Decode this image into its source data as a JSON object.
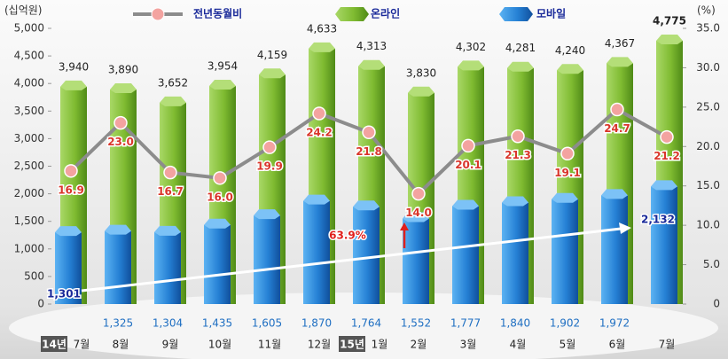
{
  "chart_data": {
    "type": "bar",
    "y_label": "(십억원)",
    "y2_label": "(%)",
    "categories": [
      "7월",
      "8월",
      "9월",
      "10월",
      "11월",
      "12월",
      "1월",
      "2월",
      "3월",
      "4월",
      "5월",
      "6월",
      "7월"
    ],
    "year_labels": [
      "14년",
      null,
      null,
      null,
      null,
      null,
      "15년",
      null,
      null,
      null,
      null,
      null,
      null
    ],
    "series": [
      {
        "name": "전년동월비",
        "type": "line",
        "axis": "y2",
        "color": "#8c8c8c",
        "marker_color": "#f3a3a0",
        "values": [
          16.9,
          23.0,
          16.7,
          16.0,
          19.9,
          24.2,
          21.8,
          14.0,
          20.1,
          21.3,
          19.1,
          24.7,
          21.2
        ],
        "value_labels": [
          "16.9",
          "23.0",
          "16.7",
          "16.0",
          "19.9",
          "24.2",
          "21.8",
          "14.0",
          "20.1",
          "21.3",
          "19.1",
          "24.7",
          "21.2"
        ]
      },
      {
        "name": "온라인",
        "type": "bar",
        "color": "#8cc63e",
        "values": [
          3940,
          3890,
          3652,
          3954,
          4159,
          4633,
          4313,
          3830,
          4302,
          4281,
          4240,
          4367,
          4775
        ],
        "value_labels": [
          "3,940",
          "3,890",
          "3,652",
          "3,954",
          "4,159",
          "4,633",
          "4,313",
          "3,830",
          "4,302",
          "4,281",
          "4,240",
          "4,367",
          "4,775"
        ]
      },
      {
        "name": "모바일",
        "type": "bar",
        "color": "#2a8ee0",
        "values": [
          1301,
          1325,
          1304,
          1435,
          1605,
          1870,
          1764,
          1552,
          1777,
          1840,
          1902,
          1972,
          2132
        ],
        "value_labels": [
          "1,301",
          "1,325",
          "1,304",
          "1,435",
          "1,605",
          "1,870",
          "1,764",
          "1,552",
          "1,777",
          "1,840",
          "1,902",
          "1,972",
          "2,132"
        ]
      }
    ],
    "ylim": [
      0,
      5000
    ],
    "yticks": [
      0,
      500,
      {
        "value": 1000,
        "label": "1,000"
      },
      {
        "value": 1500,
        "label": "1,500"
      },
      {
        "value": 2000,
        "label": "2,000"
      },
      {
        "value": 2500,
        "label": "2,500"
      },
      {
        "value": 3000,
        "label": "3,000"
      },
      {
        "value": 3500,
        "label": "3,500"
      },
      {
        "value": 4000,
        "label": "4,000"
      },
      {
        "value": 4500,
        "label": "4,500"
      },
      {
        "value": 5000,
        "label": "5,000"
      }
    ],
    "y2lim": [
      0,
      35
    ],
    "y2ticks": [
      0,
      {
        "value": 5,
        "label": "5.0"
      },
      {
        "value": 10,
        "label": "10.0"
      },
      {
        "value": 15,
        "label": "15.0"
      },
      {
        "value": 20,
        "label": "20.0"
      },
      {
        "value": 25,
        "label": "25.0"
      },
      {
        "value": 30,
        "label": "30.0"
      },
      {
        "value": 35,
        "label": "35.0"
      }
    ],
    "annotation": "63.9%"
  }
}
